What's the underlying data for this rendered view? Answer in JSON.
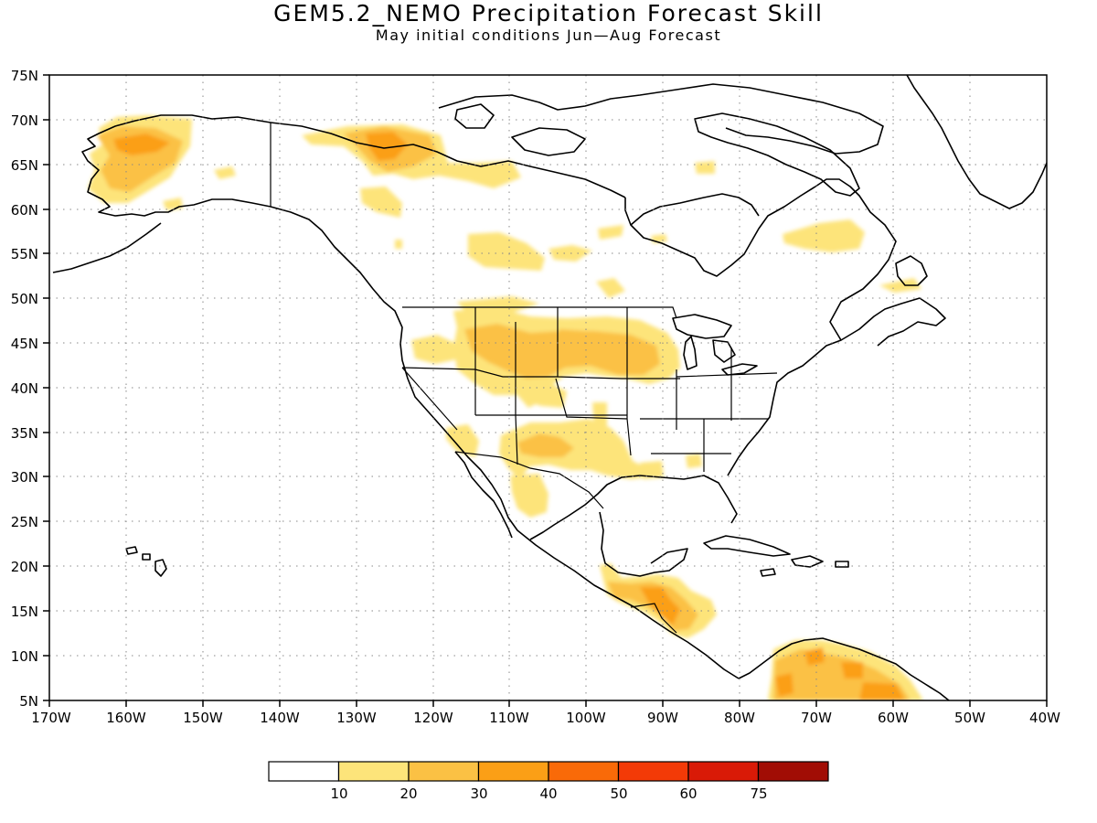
{
  "title": "GEM5.2_NEMO Precipitation Forecast Skill",
  "subtitle": "May initial conditions  Jun—Aug Forecast",
  "map": {
    "lon_range": [
      -170,
      -40
    ],
    "lat_range": [
      5,
      75
    ],
    "lat_labels": [
      "75N",
      "70N",
      "65N",
      "60N",
      "55N",
      "50N",
      "45N",
      "40N",
      "35N",
      "30N",
      "25N",
      "20N",
      "15N",
      "10N",
      "5N"
    ],
    "lon_labels": [
      "170W",
      "160W",
      "150W",
      "140W",
      "130W",
      "120W",
      "110W",
      "100W",
      "90W",
      "80W",
      "70W",
      "60W",
      "50W",
      "40W"
    ],
    "land_outline_color": "#000000",
    "gridlines": "dotted"
  },
  "colorbar": {
    "colors": [
      "#ffffff",
      "#fde47a",
      "#fbc144",
      "#fb9f16",
      "#f96a08",
      "#f33a07",
      "#d91a07",
      "#a10d05"
    ],
    "labels": [
      "10",
      "20",
      "30",
      "40",
      "50",
      "60",
      "75"
    ]
  }
}
